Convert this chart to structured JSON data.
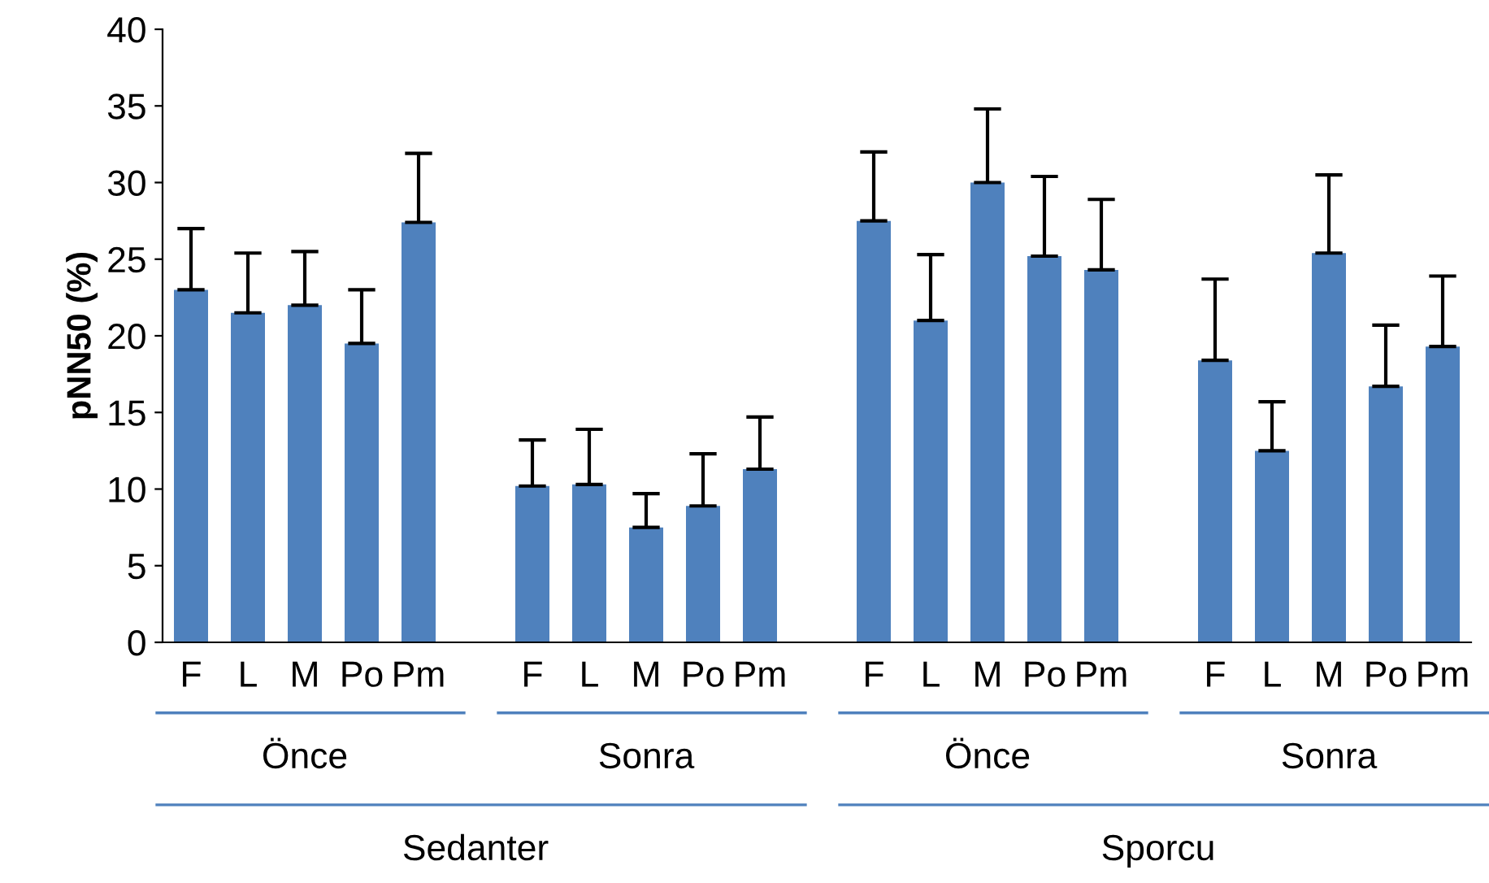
{
  "chart_data": {
    "type": "bar",
    "ylabel": "pNN50 (%)",
    "categories": [
      "F",
      "L",
      "M",
      "Po",
      "Pm",
      null,
      "F",
      "L",
      "M",
      "Po",
      "Pm",
      null,
      "F",
      "L",
      "M",
      "Po",
      "Pm",
      null,
      "F",
      "L",
      "M",
      "Po",
      "Pm"
    ],
    "values": [
      23.0,
      21.5,
      22.0,
      19.5,
      27.4,
      null,
      10.2,
      10.3,
      7.5,
      8.9,
      11.3,
      null,
      27.5,
      21.0,
      30.0,
      25.2,
      24.3,
      null,
      18.4,
      12.5,
      25.4,
      16.7,
      19.3
    ],
    "errors": [
      [
        23.0,
        27.0
      ],
      [
        21.5,
        25.4
      ],
      [
        22.0,
        25.5
      ],
      [
        19.5,
        23.0
      ],
      [
        27.4,
        31.9
      ],
      null,
      [
        10.2,
        13.2
      ],
      [
        10.3,
        13.9
      ],
      [
        7.5,
        9.7
      ],
      [
        8.9,
        12.3
      ],
      [
        11.3,
        14.7
      ],
      null,
      [
        27.5,
        32.0
      ],
      [
        21.0,
        25.3
      ],
      [
        30.0,
        34.8
      ],
      [
        25.2,
        30.4
      ],
      [
        24.3,
        28.9
      ],
      null,
      [
        18.4,
        23.7
      ],
      [
        12.5,
        15.7
      ],
      [
        25.4,
        30.5
      ],
      [
        16.7,
        20.7
      ],
      [
        19.3,
        23.9
      ]
    ],
    "color": "#4f81bd",
    "ylim": [
      0,
      40
    ],
    "yticks": [
      0,
      5,
      10,
      15,
      20,
      25,
      30,
      35,
      40
    ],
    "grid": false,
    "legend": false,
    "annotations": [
      "Önce",
      "Sonra",
      "Önce",
      "Sonra",
      "Sedanter",
      "Sporcu"
    ]
  }
}
